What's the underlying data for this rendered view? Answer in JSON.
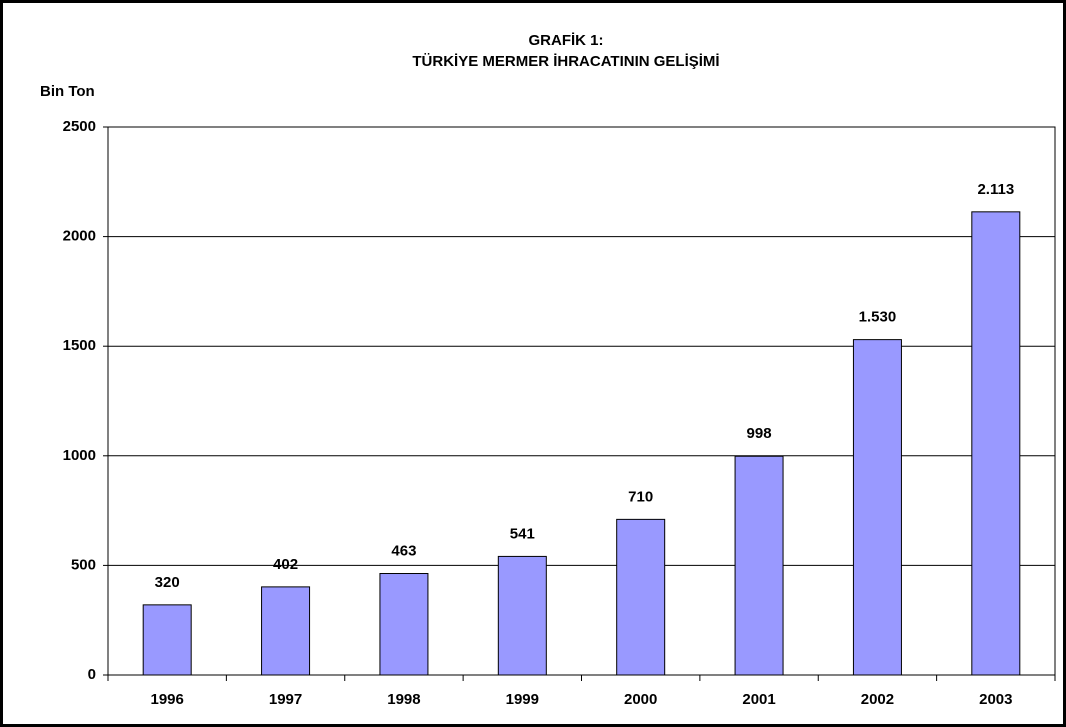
{
  "chart_data": {
    "type": "bar",
    "title": "GRAFİK 1:",
    "subtitle": "TÜRKİYE MERMER İHRACATININ GELİŞİMİ",
    "y_label": "Bin Ton",
    "categories": [
      "1996",
      "1997",
      "1998",
      "1999",
      "2000",
      "2001",
      "2002",
      "2003"
    ],
    "values": [
      320,
      402,
      463,
      541,
      710,
      998,
      1530,
      2113
    ],
    "value_labels": [
      "320",
      "402",
      "463",
      "541",
      "710",
      "998",
      "1.530",
      "2.113"
    ],
    "color": "#9999ff",
    "ylim": [
      0,
      2500
    ],
    "yticks": [
      0,
      500,
      1000,
      1500,
      2000,
      2500
    ],
    "grid": true
  }
}
